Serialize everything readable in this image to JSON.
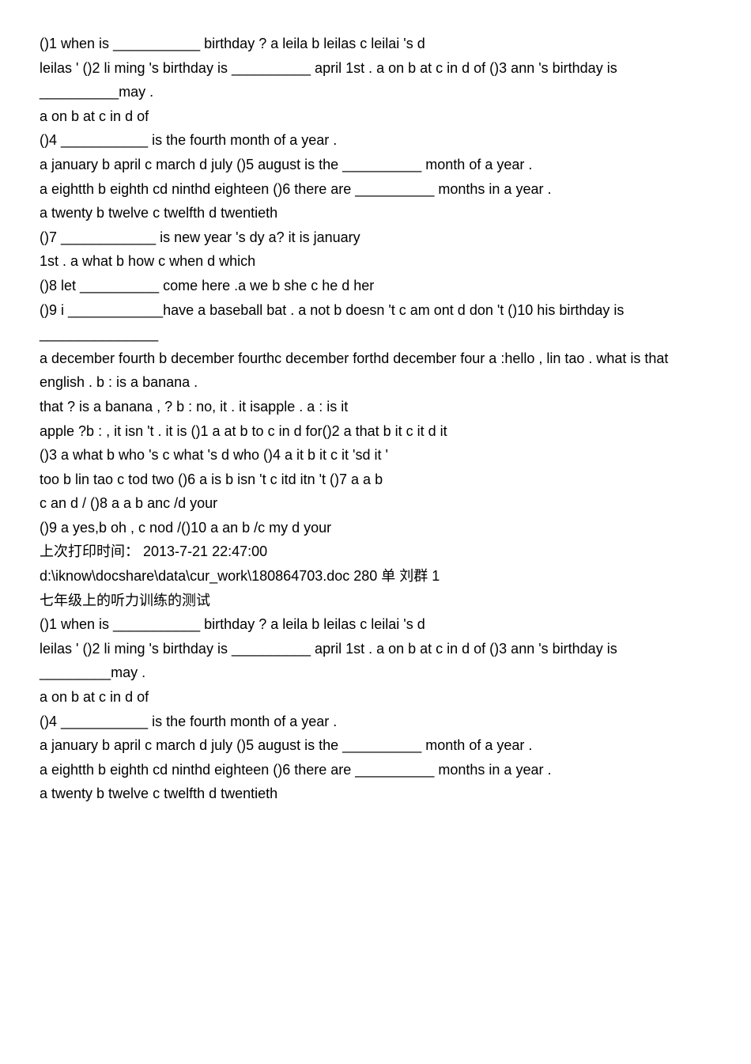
{
  "lines": [
    " ()1 when is ___________ birthday ? a leila  b leilas  c leilai                          's d",
    "leilas    ' ()2 li ming       's birthday is __________ april 1st . a on  b at c in d of  ()3 ann        's birthday is __________may .",
    " a on  b at  c in  d of",
    " ()4 ___________ is the fourth month of a year .",
    " a january  b april  c march  d july  ()5 august is the __________ month of a year .",
    " a eightth  b eighth  cd ninthd eighteen  ()6 there are __________ months in a year .",
    " a twenty  b twelve  c twelfth  d twentieth",
    " ()7 ____________ is new year      's dy a? it is january",
    " 1st . a what  b how  c when  d which",
    " ()8 let __________ come here .a we  b she  c he  d her",
    " ()9 i ____________have a baseball bat . a not  b doesn                 't  c am ont  d don   't  ()10 his birthday is _______________",
    " a december fourth  b december fourthc december forthd december four  a :hello , lin tao . what is that  english . b :  is a banana .",
    " that ?  is a banana  , ? b : no, it  . it isapple . a : is it",
    "apple ?b :  , it isn           't . it is ()1 a at  b to  c in  d for()2 a that  b it c it  d it",
    " ()3 a what  b who    's  c what   's  d who ()4 a it  b it  c it               'sd it   '",
    "too  b lin tao  c tod two  ()6 a is  b isn                        't  c itd itn       't  ()7 a a  b",
    "c an  d / ()8 a a  b anc /d your",
    " ()9 a yes,b oh ,  c nod /()10 a an  b /c my  d your",
    " 上次打印时间：  2013-7-21 22:47:00",
    "d:\\iknow\\docshare\\data\\cur_work\\180864703.doc  280           单 刘群 1",
    " 七年级上的听力训练的测试",
    " ()1 when is ___________ birthday ? a leila  b leilas  c leilai                            's d",
    "leilas    ' ()2 li ming       's birthday is __________ april 1st . a on  b at c in d of  ()3 ann        's birthday is _________may .",
    " a on  b at  c in  d of",
    " ()4 ___________ is the fourth month of a year .",
    " a january  b april  c march  d july  ()5 august is the __________ month of a year .",
    " a eightth  b eighth  cd ninthd eighteen  ()6 there are __________ months in a year .",
    " a twenty  b twelve  c twelfth  d twentieth"
  ]
}
